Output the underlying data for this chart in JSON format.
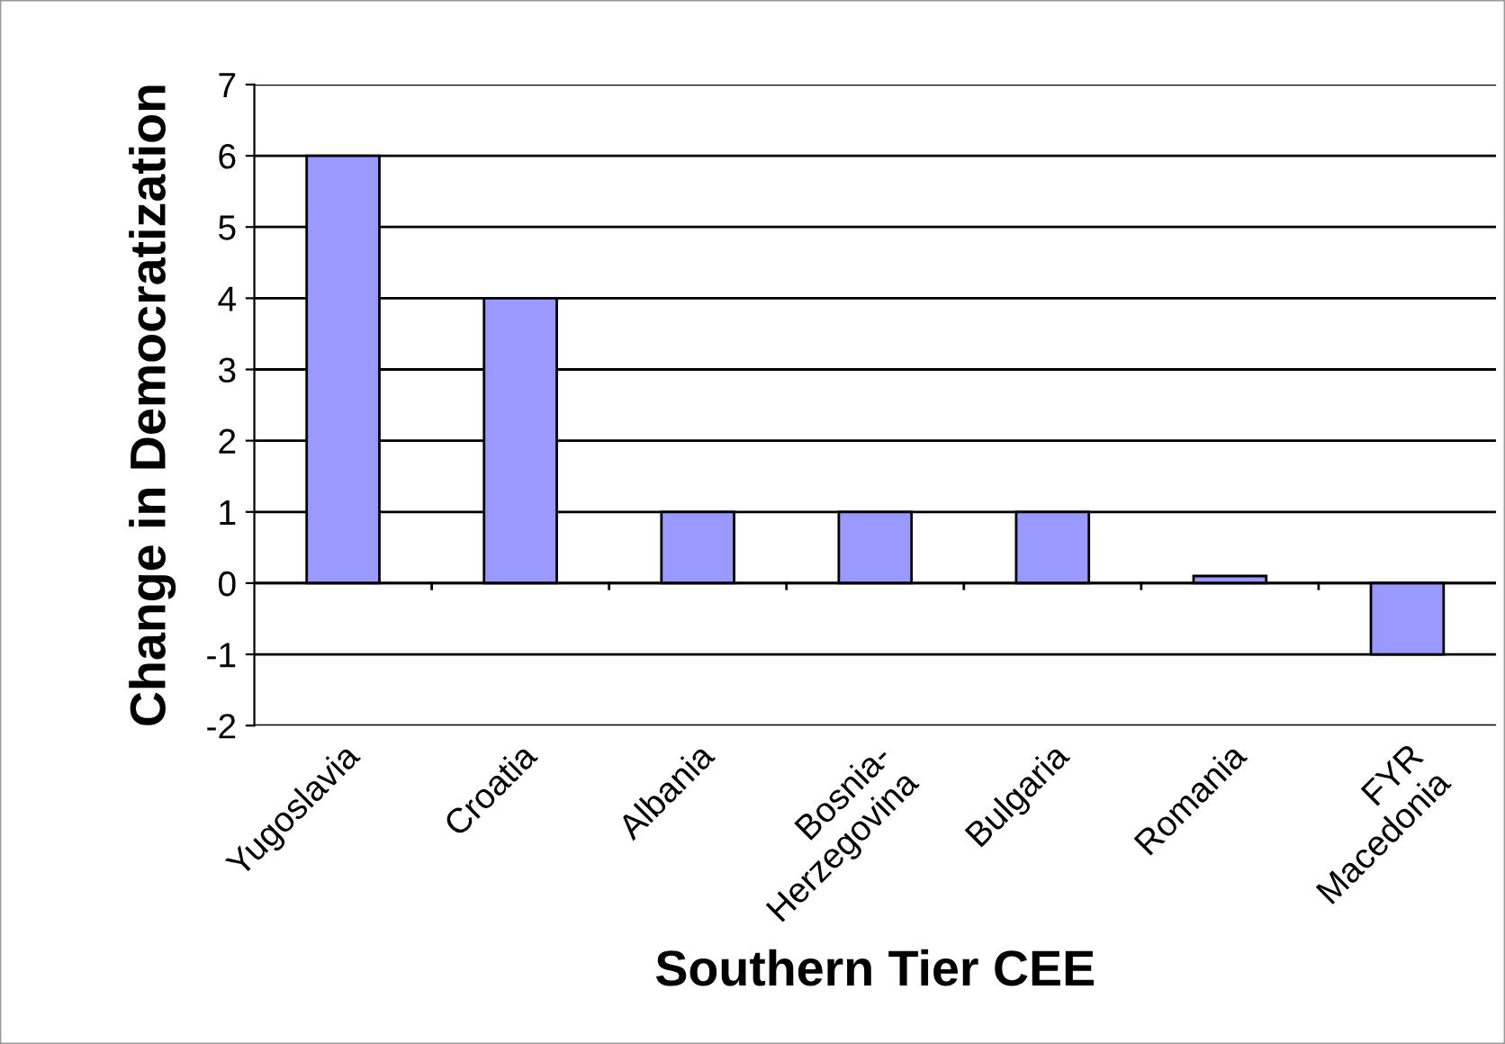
{
  "chart_data": {
    "type": "bar",
    "xlabel": "Southern Tier CEE",
    "ylabel": "Change in Democratization",
    "categories": [
      "Yugoslavia",
      "Croatia",
      "Albania",
      "Bosnia-\nHerzegovina",
      "Bulgaria",
      "Romania",
      "FYR\nMacedonia"
    ],
    "values": [
      6,
      4,
      1,
      1,
      1,
      0.1,
      -1
    ],
    "color": "#9999ff",
    "ylim": [
      -2,
      7
    ],
    "yticks": [
      -2,
      -1,
      0,
      1,
      2,
      3,
      4,
      5,
      6,
      7
    ],
    "grid": "y"
  }
}
